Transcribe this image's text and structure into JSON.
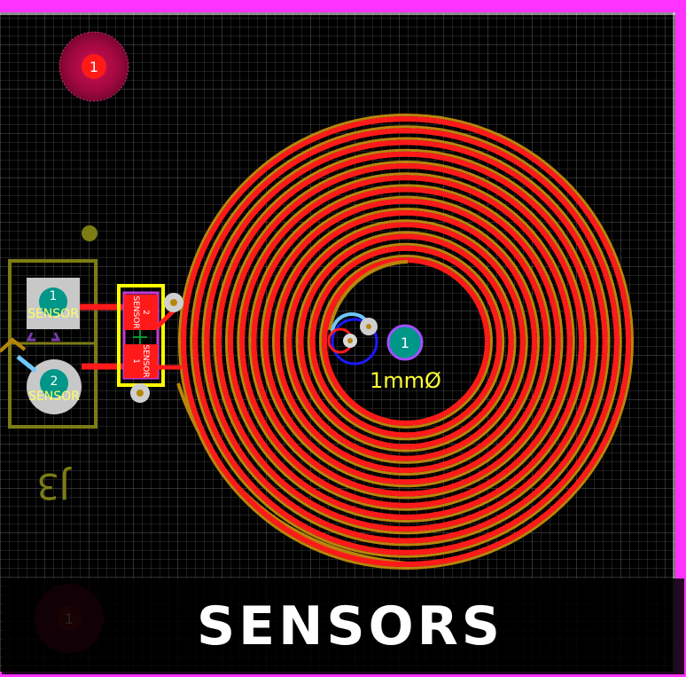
{
  "banner": {
    "title": "SENSORS"
  },
  "labels": {
    "mount_pad_top": "1",
    "mount_pad_bottom": "1",
    "center_pad": "1",
    "drill_size": "1mmØ",
    "designator": "J3",
    "connector_pad1_num": "1",
    "connector_pad1_net": "SENSOR",
    "connector_pad2_num": "2",
    "connector_pad2_net": "SENSOR",
    "comp_pad1_num": "2",
    "comp_pad1_net": "SENSOR",
    "comp_pad2_num": "1",
    "comp_pad2_net": "SENSOR"
  },
  "colors": {
    "background": "#000000",
    "grid": "#3c3c3c",
    "board_outline": "#ff33ff",
    "copper_top": "#ff1a1a",
    "copper_bottom": "#b8860b",
    "silkscreen": "#7c7c14",
    "keepout_yellow": "#ffff00",
    "pad_teal": "#009688",
    "via_gray": "#c8c8c8"
  },
  "icons": {
    "coil": "spiral-coil-icon",
    "mount_hole": "mounting-hole-icon"
  }
}
